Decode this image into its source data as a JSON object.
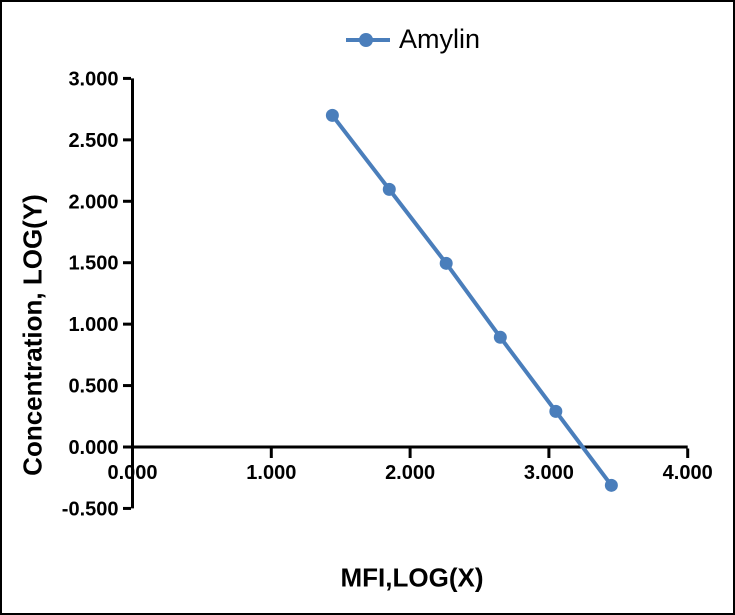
{
  "window": {
    "background": "#ffffff",
    "border_color": "#000000"
  },
  "chart_data": {
    "type": "line",
    "title": "",
    "xlabel": "MFI,LOG(X)",
    "ylabel": "Concentration, LOG(Y)",
    "grid": false,
    "legend_position": "top-center",
    "series": [
      {
        "name": "Amylin",
        "color": "#4a7ebb",
        "marker": "circle",
        "x": [
          1.44,
          1.85,
          2.26,
          2.65,
          3.05,
          3.45
        ],
        "y": [
          2.699,
          2.097,
          1.495,
          0.893,
          0.29,
          -0.312
        ]
      }
    ],
    "x_axis": {
      "min": 0,
      "max": 4,
      "tick_step": 1,
      "ticks": [
        {
          "v": 0,
          "label": "0.000"
        },
        {
          "v": 1,
          "label": "1.000"
        },
        {
          "v": 2,
          "label": "2.000"
        },
        {
          "v": 3,
          "label": "3.000"
        },
        {
          "v": 4,
          "label": "4.000"
        }
      ]
    },
    "y_axis": {
      "min": -0.5,
      "max": 3,
      "tick_step": 0.5,
      "ticks": [
        {
          "v": 3,
          "label": "3.000"
        },
        {
          "v": 2.5,
          "label": "2.500"
        },
        {
          "v": 2,
          "label": "2.000"
        },
        {
          "v": 1.5,
          "label": "1.500"
        },
        {
          "v": 1,
          "label": "1.000"
        },
        {
          "v": 0.5,
          "label": "0.500"
        },
        {
          "v": 0,
          "label": "0.000"
        },
        {
          "v": -0.5,
          "label": "-0.500"
        }
      ]
    }
  }
}
